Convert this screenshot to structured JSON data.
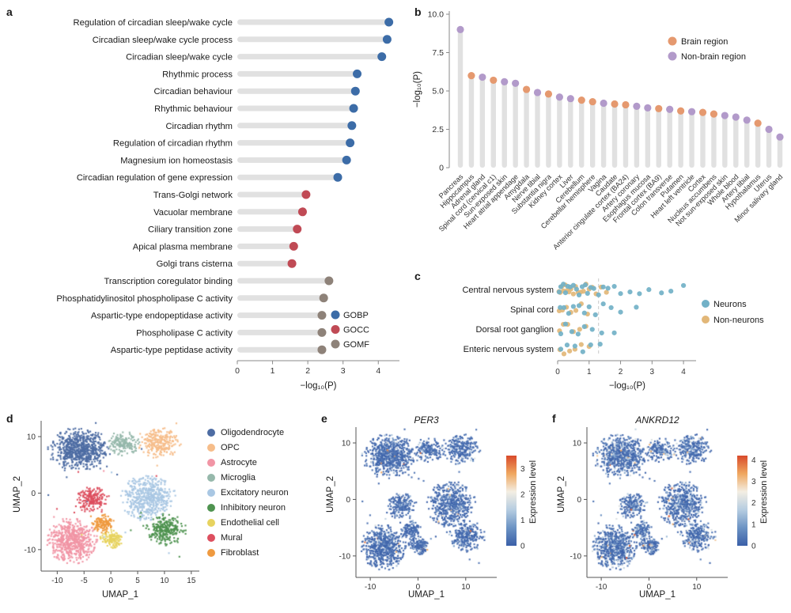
{
  "figure": {
    "background": "#ffffff"
  },
  "panel_a": {
    "label": "a",
    "xlabel": "−log₁₀(P)",
    "axis": {
      "xticks": [
        0,
        1,
        2,
        3,
        4
      ],
      "xmax": 4.6
    },
    "legend": [
      {
        "label": "GOBP",
        "color": "#3c6ca7"
      },
      {
        "label": "GOCC",
        "color": "#c04a55"
      },
      {
        "label": "GOMF",
        "color": "#8e8279"
      }
    ],
    "chart_data": {
      "type": "lollipop",
      "orientation": "horizontal",
      "value_name": "-log10(P)",
      "items": [
        {
          "term": "Regulation of circadian sleep/wake cycle",
          "value": 4.3,
          "group": "GOBP"
        },
        {
          "term": "Circadian sleep/wake cycle process",
          "value": 4.25,
          "group": "GOBP"
        },
        {
          "term": "Circadian sleep/wake cycle",
          "value": 4.1,
          "group": "GOBP"
        },
        {
          "term": "Rhythmic process",
          "value": 3.4,
          "group": "GOBP"
        },
        {
          "term": "Circadian behaviour",
          "value": 3.35,
          "group": "GOBP"
        },
        {
          "term": "Rhythmic behaviour",
          "value": 3.3,
          "group": "GOBP"
        },
        {
          "term": "Circadian rhythm",
          "value": 3.25,
          "group": "GOBP"
        },
        {
          "term": "Regulation of circadian rhythm",
          "value": 3.2,
          "group": "GOBP"
        },
        {
          "term": "Magnesium ion homeostasis",
          "value": 3.1,
          "group": "GOBP"
        },
        {
          "term": "Circadian regulation of gene expression",
          "value": 2.85,
          "group": "GOBP"
        },
        {
          "term": "Trans-Golgi network",
          "value": 1.95,
          "group": "GOCC"
        },
        {
          "term": "Vacuolar membrane",
          "value": 1.85,
          "group": "GOCC"
        },
        {
          "term": "Ciliary transition zone",
          "value": 1.7,
          "group": "GOCC"
        },
        {
          "term": "Apical plasma membrane",
          "value": 1.6,
          "group": "GOCC"
        },
        {
          "term": "Golgi trans cisterna",
          "value": 1.55,
          "group": "GOCC"
        },
        {
          "term": "Transcription coregulator binding",
          "value": 2.6,
          "group": "GOMF"
        },
        {
          "term": "Phosphatidylinositol phospholipase C activity",
          "value": 2.45,
          "group": "GOMF"
        },
        {
          "term": "Aspartic-type endopeptidase activity",
          "value": 2.4,
          "group": "GOMF"
        },
        {
          "term": "Phospholipase C activity",
          "value": 2.4,
          "group": "GOMF"
        },
        {
          "term": "Aspartic-type peptidase activity",
          "value": 2.4,
          "group": "GOMF"
        }
      ]
    }
  },
  "panel_b": {
    "label": "b",
    "ylabel": "−log₁₀(P)",
    "axis": {
      "yticks": [
        {
          "v": 0,
          "t": "0"
        },
        {
          "v": 2.5,
          "t": "2.5"
        },
        {
          "v": 5,
          "t": "5.0"
        },
        {
          "v": 7.5,
          "t": "7.5"
        },
        {
          "v": 10,
          "t": "10.0"
        }
      ],
      "ymax": 10
    },
    "legend": [
      {
        "label": "Brain region",
        "color": "#e5996f"
      },
      {
        "label": "Non-brain region",
        "color": "#b29aca"
      }
    ],
    "chart_data": {
      "type": "lollipop",
      "orientation": "vertical",
      "value_name": "-log10(P)",
      "items": [
        {
          "tissue": "Pancreas",
          "value": 9.0,
          "group": "Non-brain region"
        },
        {
          "tissue": "Hippocampus",
          "value": 6.0,
          "group": "Brain region"
        },
        {
          "tissue": "Adrenal gland",
          "value": 5.9,
          "group": "Non-brain region"
        },
        {
          "tissue": "Spinal cord (cervical c1)",
          "value": 5.7,
          "group": "Brain region"
        },
        {
          "tissue": "Sun-exposed skin",
          "value": 5.6,
          "group": "Non-brain region"
        },
        {
          "tissue": "Heart atrial appendage",
          "value": 5.5,
          "group": "Non-brain region"
        },
        {
          "tissue": "Amygdala",
          "value": 5.1,
          "group": "Brain region"
        },
        {
          "tissue": "Nerve tibial",
          "value": 4.9,
          "group": "Non-brain region"
        },
        {
          "tissue": "Substantia nigra",
          "value": 4.8,
          "group": "Brain region"
        },
        {
          "tissue": "Kidney cortex",
          "value": 4.6,
          "group": "Non-brain region"
        },
        {
          "tissue": "Liver",
          "value": 4.5,
          "group": "Non-brain region"
        },
        {
          "tissue": "Cerebellum",
          "value": 4.4,
          "group": "Brain region"
        },
        {
          "tissue": "Cerebellar hemisphere",
          "value": 4.3,
          "group": "Brain region"
        },
        {
          "tissue": "Vagina",
          "value": 4.2,
          "group": "Non-brain region"
        },
        {
          "tissue": "Caudate",
          "value": 4.15,
          "group": "Brain region"
        },
        {
          "tissue": "Anterior cingulate cortex (BA24)",
          "value": 4.1,
          "group": "Brain region"
        },
        {
          "tissue": "Artery coronary",
          "value": 4.0,
          "group": "Non-brain region"
        },
        {
          "tissue": "Esophagus mucosa",
          "value": 3.9,
          "group": "Non-brain region"
        },
        {
          "tissue": "Frontal cortex (BA9)",
          "value": 3.85,
          "group": "Brain region"
        },
        {
          "tissue": "Colon transverse",
          "value": 3.8,
          "group": "Non-brain region"
        },
        {
          "tissue": "Putamen",
          "value": 3.7,
          "group": "Brain region"
        },
        {
          "tissue": "Heart left ventricle",
          "value": 3.65,
          "group": "Non-brain region"
        },
        {
          "tissue": "Cortex",
          "value": 3.6,
          "group": "Brain region"
        },
        {
          "tissue": "Nucleus accumbens",
          "value": 3.5,
          "group": "Brain region"
        },
        {
          "tissue": "Not sun-exposed skin",
          "value": 3.4,
          "group": "Non-brain region"
        },
        {
          "tissue": "Whole blood",
          "value": 3.3,
          "group": "Non-brain region"
        },
        {
          "tissue": "Artery tibial",
          "value": 3.1,
          "group": "Non-brain region"
        },
        {
          "tissue": "Hypothalamus",
          "value": 2.9,
          "group": "Brain region"
        },
        {
          "tissue": "Uterus",
          "value": 2.5,
          "group": "Non-brain region"
        },
        {
          "tissue": "Minor salivary gland",
          "value": 2.0,
          "group": "Non-brain region"
        }
      ]
    }
  },
  "panel_c": {
    "label": "c",
    "xlabel": "−log₁₀(P)",
    "axis": {
      "xticks": [
        0,
        1,
        2,
        3,
        4
      ],
      "xmax": 4.4,
      "threshold": 1.3
    },
    "legend": [
      {
        "label": "Neurons",
        "color": "#72b1c7"
      },
      {
        "label": "Non-neurons",
        "color": "#e2b778"
      }
    ],
    "chart_data": {
      "type": "strip",
      "rows": [
        {
          "category": "Central nervous system",
          "neurons": [
            0.05,
            0.1,
            0.18,
            0.25,
            0.32,
            0.4,
            0.5,
            0.6,
            0.68,
            0.78,
            0.88,
            0.95,
            1.05,
            1.15,
            1.3,
            1.45,
            1.6,
            1.8,
            2.0,
            2.3,
            2.6,
            2.9,
            3.3,
            3.6,
            4.0
          ],
          "non_neurons": [
            0.04,
            0.08,
            0.13,
            0.18,
            0.24,
            0.3,
            0.36,
            0.42,
            0.5,
            0.57,
            0.65,
            0.73,
            0.82,
            0.9,
            1.0,
            1.1,
            1.22,
            1.38,
            1.55
          ]
        },
        {
          "category": "Spinal cord",
          "neurons": [
            0.08,
            0.2,
            0.35,
            0.5,
            0.68,
            0.85,
            1.0,
            1.2,
            1.45,
            1.7,
            2.0,
            2.5
          ],
          "non_neurons": [
            0.05,
            0.15,
            0.28,
            0.42,
            0.58,
            0.75,
            0.95
          ]
        },
        {
          "category": "Dorsal root ganglion",
          "neurons": [
            0.1,
            0.25,
            0.45,
            0.65,
            0.85,
            1.1,
            1.4,
            1.8
          ],
          "non_neurons": [
            0.06,
            0.18,
            0.32,
            0.5,
            0.7,
            0.9
          ]
        },
        {
          "category": "Enteric nervous system",
          "neurons": [
            0.1,
            0.3,
            0.55,
            0.8,
            1.05,
            1.35
          ],
          "non_neurons": [
            0.07,
            0.2,
            0.38,
            0.55,
            0.75,
            1.0
          ]
        }
      ]
    }
  },
  "panel_d": {
    "label": "d",
    "xlabel": "UMAP_1",
    "ylabel": "UMAP_2",
    "axis": {
      "xticks": [
        {
          "v": -10,
          "t": "-10"
        },
        {
          "v": -5,
          "t": "-5"
        },
        {
          "v": 0,
          "t": "0"
        },
        {
          "v": 5,
          "t": "5"
        },
        {
          "v": 10,
          "t": "10"
        },
        {
          "v": 15,
          "t": "15"
        }
      ],
      "yticks": [
        {
          "v": -10,
          "t": "-10"
        },
        {
          "v": 0,
          "t": "0"
        },
        {
          "v": 10,
          "t": "10"
        }
      ],
      "xlim": [
        -13,
        16.5
      ],
      "ylim": [
        -13.8,
        12.8
      ]
    },
    "chart_data": {
      "type": "umap-scatter",
      "clusters": [
        {
          "name": "Oligodendrocyte",
          "color": "#4d6ca3",
          "center": [
            -6,
            7.8
          ],
          "spread": [
            2.7,
            1.8
          ],
          "n": 700
        },
        {
          "name": "OPC",
          "color": "#f6bd8a",
          "center": [
            9.3,
            8.9
          ],
          "spread": [
            1.9,
            1.3
          ],
          "n": 260
        },
        {
          "name": "Astrocyte",
          "color": "#f195a5",
          "center": [
            -7.3,
            -8.5
          ],
          "spread": [
            2.2,
            1.9
          ],
          "n": 600
        },
        {
          "name": "Microglia",
          "color": "#96b8ab",
          "center": [
            2.3,
            8.9
          ],
          "spread": [
            1.4,
            1.0
          ],
          "n": 170
        },
        {
          "name": "Excitatory neuron",
          "color": "#a9c7e3",
          "center": [
            7,
            -0.9
          ],
          "spread": [
            2.4,
            1.9
          ],
          "n": 550
        },
        {
          "name": "Inhibitory neuron",
          "color": "#4f9350",
          "center": [
            10.4,
            -6.5
          ],
          "spread": [
            1.8,
            1.3
          ],
          "n": 280
        },
        {
          "name": "Endothelial cell",
          "color": "#e7d35f",
          "center": [
            0,
            -8.2
          ],
          "spread": [
            1.0,
            0.8
          ],
          "n": 140
        },
        {
          "name": "Mural",
          "color": "#dd4f5f",
          "center": [
            -3.6,
            -1.2
          ],
          "spread": [
            1.4,
            1.1
          ],
          "n": 200
        },
        {
          "name": "Fibroblast",
          "color": "#ef9a40",
          "center": [
            -1.4,
            -5.4
          ],
          "spread": [
            1.0,
            0.8
          ],
          "n": 130
        }
      ]
    }
  },
  "panel_e": {
    "label": "e",
    "title": "PER3",
    "xlabel": "UMAP_1",
    "ylabel": "UMAP_2",
    "axis": {
      "xticks": [
        {
          "v": -10,
          "t": "-10"
        },
        {
          "v": 0,
          "t": "0"
        },
        {
          "v": 10,
          "t": "10"
        }
      ],
      "yticks": [
        {
          "v": -10,
          "t": "-10"
        },
        {
          "v": 0,
          "t": "0"
        },
        {
          "v": 10,
          "t": "10"
        }
      ],
      "xlim": [
        -13,
        16.5
      ],
      "ylim": [
        -13.8,
        12.8
      ]
    },
    "colorbar": {
      "label": "Expression level",
      "ticks": [
        {
          "v": 0,
          "t": "0"
        },
        {
          "v": 1,
          "t": "1"
        },
        {
          "v": 2,
          "t": "2"
        },
        {
          "v": 3,
          "t": "3"
        }
      ],
      "max": 3.5,
      "stops": [
        "#3a5fa8",
        "#6c93c4",
        "#b6cde1",
        "#f3eee3",
        "#efa75f",
        "#d84a2b"
      ]
    },
    "chart_data": {
      "type": "umap-feature",
      "gene": "PER3",
      "expr_profile": {
        "high_frac": 0.012,
        "mid_frac": 0.1
      }
    }
  },
  "panel_f": {
    "label": "f",
    "title": "ANKRD12",
    "xlabel": "UMAP_1",
    "ylabel": "UMAP_2",
    "axis": {
      "xticks": [
        {
          "v": -10,
          "t": "-10"
        },
        {
          "v": 0,
          "t": "0"
        },
        {
          "v": 10,
          "t": "10"
        }
      ],
      "yticks": [
        {
          "v": -10,
          "t": "-10"
        },
        {
          "v": 0,
          "t": "0"
        },
        {
          "v": 10,
          "t": "10"
        }
      ],
      "xlim": [
        -13,
        16.5
      ],
      "ylim": [
        -13.8,
        12.8
      ]
    },
    "colorbar": {
      "label": "Expression level",
      "ticks": [
        {
          "v": 0,
          "t": "0"
        },
        {
          "v": 1,
          "t": "1"
        },
        {
          "v": 2,
          "t": "2"
        },
        {
          "v": 3,
          "t": "3"
        },
        {
          "v": 4,
          "t": "4"
        }
      ],
      "max": 4.2,
      "stops": [
        "#3a5fa8",
        "#6c93c4",
        "#b6cde1",
        "#f3eee3",
        "#efa75f",
        "#d84a2b"
      ]
    },
    "chart_data": {
      "type": "umap-feature",
      "gene": "ANKRD12",
      "expr_profile": {
        "high_frac": 0.02,
        "mid_frac": 0.22
      }
    }
  }
}
